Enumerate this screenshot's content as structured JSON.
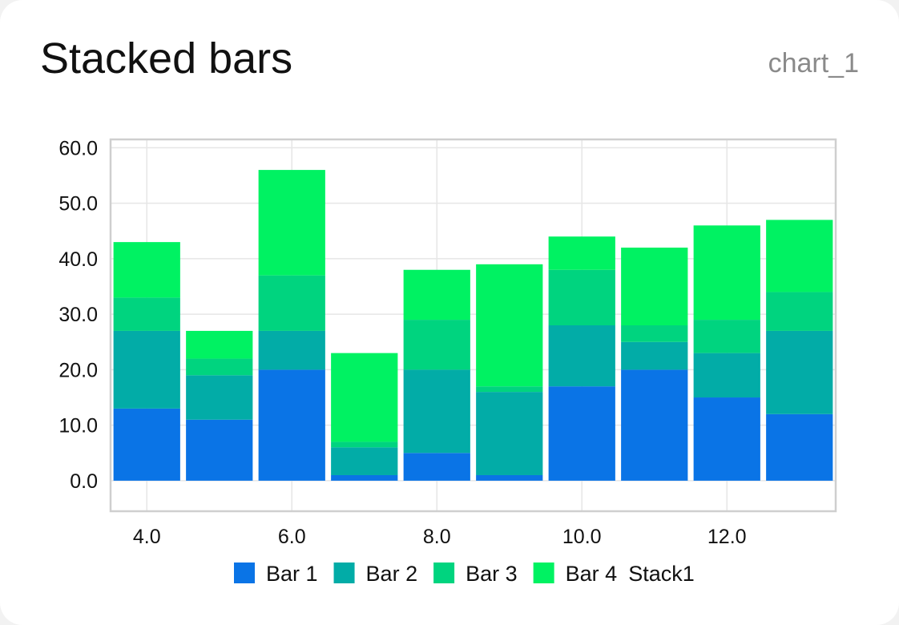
{
  "card": {
    "title": "Stacked bars",
    "id_label": "chart_1"
  },
  "chart_data": {
    "type": "bar",
    "stacked": true,
    "stack_name": "Stack1",
    "x": [
      4,
      5,
      6,
      7,
      8,
      9,
      10,
      11,
      12,
      13
    ],
    "series": [
      {
        "name": "Bar 1",
        "color": "#0a74e6",
        "values": [
          13,
          11,
          20,
          1,
          5,
          1,
          17,
          20,
          15,
          12
        ]
      },
      {
        "name": "Bar 2",
        "color": "#02aca7",
        "values": [
          14,
          8,
          7,
          5,
          15,
          15,
          11,
          5,
          8,
          15
        ]
      },
      {
        "name": "Bar 3",
        "color": "#00d47f",
        "values": [
          6,
          3,
          10,
          1,
          9,
          1,
          10,
          3,
          6,
          7
        ]
      },
      {
        "name": "Bar 4",
        "color": "#00f262",
        "values": [
          10,
          5,
          19,
          16,
          9,
          22,
          6,
          14,
          17,
          13
        ]
      }
    ],
    "xlim": [
      3.5,
      13.5
    ],
    "ylim": [
      -5.5,
      61.5
    ],
    "x_ticks": [
      "4.0",
      "6.0",
      "8.0",
      "10.0",
      "12.0"
    ],
    "x_tick_values": [
      4,
      6,
      8,
      10,
      12
    ],
    "y_ticks": [
      "0.0",
      "10.0",
      "20.0",
      "30.0",
      "40.0",
      "50.0",
      "60.0"
    ],
    "y_tick_values": [
      0,
      10,
      20,
      30,
      40,
      50,
      60
    ],
    "grid": true,
    "legend_position": "bottom"
  }
}
